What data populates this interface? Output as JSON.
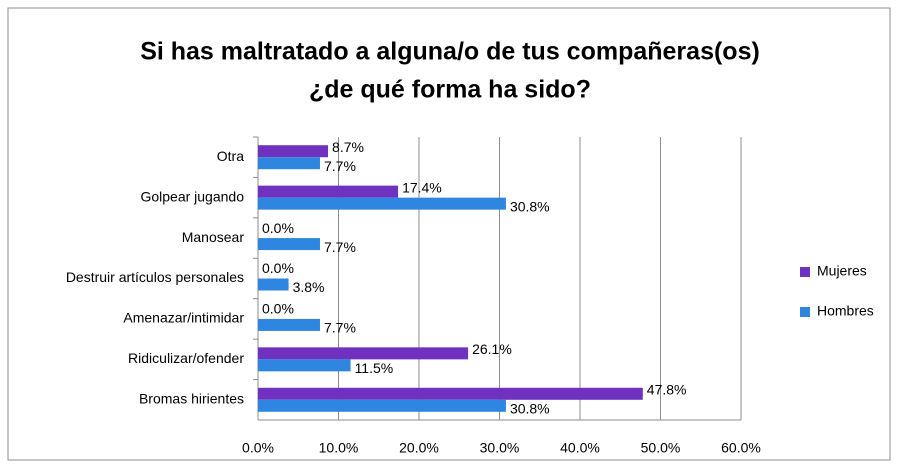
{
  "chart_data": {
    "type": "hbar",
    "title": [
      "Si has maltratado a alguna/o de tus compañeras(os)",
      "¿de qué forma ha sido?"
    ],
    "categories": [
      "Otra",
      "Golpear jugando",
      "Manosear",
      "Destruir artículos personales",
      "Amenazar/intimidar",
      "Ridiculizar/ofender",
      "Bromas hirientes"
    ],
    "series": [
      {
        "name": "Mujeres",
        "color": "#7030c0",
        "values": [
          8.7,
          17.4,
          0.0,
          0.0,
          0.0,
          26.1,
          47.8
        ],
        "value_labels": [
          "8.7%",
          "17.4%",
          "0.0%",
          "0.0%",
          "0.0%",
          "26.1%",
          "47.8%"
        ]
      },
      {
        "name": "Hombres",
        "color": "#2f86e0",
        "values": [
          7.7,
          30.8,
          7.7,
          3.8,
          7.7,
          11.5,
          30.8
        ],
        "value_labels": [
          "7.7%",
          "30.8%",
          "7.7%",
          "3.8%",
          "7.7%",
          "11.5%",
          "30.8%"
        ]
      }
    ],
    "xlim": [
      0,
      60
    ],
    "xticks": [
      {
        "value": 0,
        "label": "0.0%"
      },
      {
        "value": 10,
        "label": "10.0%"
      },
      {
        "value": 20,
        "label": "20.0%"
      },
      {
        "value": 30,
        "label": "30.0%"
      },
      {
        "value": 40,
        "label": "40.0%"
      },
      {
        "value": 50,
        "label": "50.0%"
      },
      {
        "value": 60,
        "label": "60.0%"
      }
    ],
    "grid": true,
    "legend": "right"
  }
}
